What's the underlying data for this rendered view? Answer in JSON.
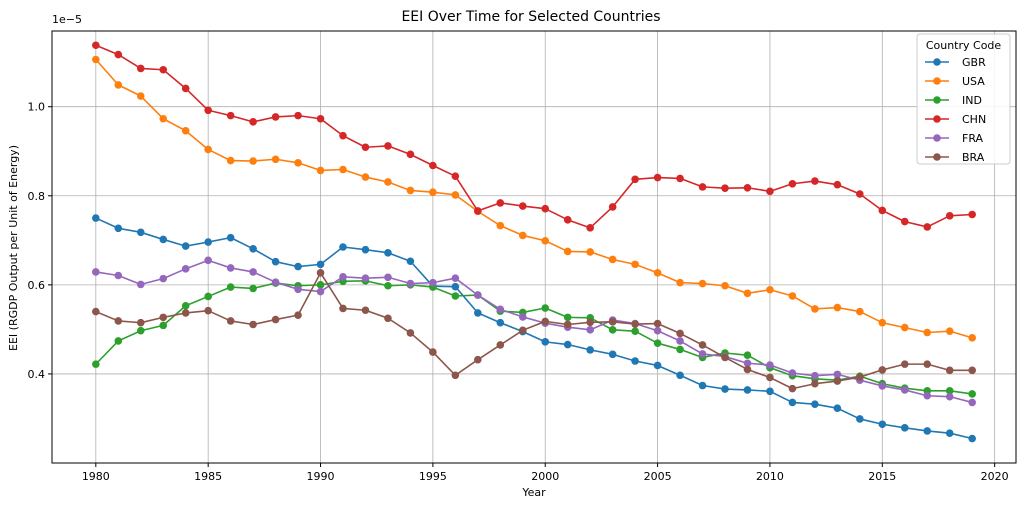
{
  "chart_data": {
    "type": "line",
    "title": "EEI Over Time for Selected Countries",
    "xlabel": "Year",
    "ylabel": "EEI (RGDP Output per Unit of Energy)",
    "y_scale_label": "1e−5",
    "xlim": [
      1978.05,
      2020.95
    ],
    "ylim": [
      0.2,
      1.17
    ],
    "x_ticks": [
      1980,
      1985,
      1990,
      1995,
      2000,
      2005,
      2010,
      2015,
      2020
    ],
    "y_ticks": [
      0.4,
      0.6,
      0.8,
      1.0
    ],
    "y_tick_labels": [
      "0.4",
      "0.6",
      "0.8",
      "1.0"
    ],
    "grid": true,
    "legend_title": "Country Code",
    "legend_position": "top-right",
    "x": [
      1980,
      1981,
      1982,
      1983,
      1984,
      1985,
      1986,
      1987,
      1988,
      1989,
      1990,
      1991,
      1992,
      1993,
      1994,
      1995,
      1996,
      1997,
      1998,
      1999,
      2000,
      2001,
      2002,
      2003,
      2004,
      2005,
      2006,
      2007,
      2008,
      2009,
      2010,
      2011,
      2012,
      2013,
      2014,
      2015,
      2016,
      2017,
      2018,
      2019
    ],
    "series": [
      {
        "name": "GBR",
        "color": "#1f77b4",
        "values": [
          0.75,
          0.727,
          0.718,
          0.702,
          0.687,
          0.696,
          0.706,
          0.681,
          0.652,
          0.641,
          0.646,
          0.685,
          0.679,
          0.672,
          0.653,
          0.597,
          0.596,
          0.537,
          0.515,
          0.495,
          0.472,
          0.466,
          0.454,
          0.444,
          0.429,
          0.419,
          0.397,
          0.374,
          0.366,
          0.364,
          0.361,
          0.336,
          0.332,
          0.323,
          0.299,
          0.287,
          0.279,
          0.272,
          0.267,
          0.255
        ]
      },
      {
        "name": "USA",
        "color": "#ff7f0e",
        "values": [
          1.106,
          1.049,
          1.024,
          0.973,
          0.946,
          0.904,
          0.879,
          0.878,
          0.882,
          0.874,
          0.857,
          0.859,
          0.842,
          0.831,
          0.812,
          0.808,
          0.802,
          0.765,
          0.733,
          0.711,
          0.699,
          0.675,
          0.674,
          0.657,
          0.646,
          0.627,
          0.605,
          0.603,
          0.598,
          0.581,
          0.589,
          0.575,
          0.546,
          0.549,
          0.54,
          0.515,
          0.504,
          0.493,
          0.496,
          0.481
        ]
      },
      {
        "name": "IND",
        "color": "#2ca02c",
        "values": [
          0.422,
          0.474,
          0.497,
          0.509,
          0.553,
          0.574,
          0.595,
          0.592,
          0.604,
          0.598,
          0.6,
          0.608,
          0.609,
          0.598,
          0.6,
          0.595,
          0.575,
          0.577,
          0.541,
          0.538,
          0.548,
          0.527,
          0.526,
          0.499,
          0.496,
          0.469,
          0.455,
          0.437,
          0.447,
          0.442,
          0.414,
          0.396,
          0.389,
          0.386,
          0.395,
          0.378,
          0.368,
          0.362,
          0.362,
          0.355
        ]
      },
      {
        "name": "CHN",
        "color": "#d62728",
        "values": [
          1.138,
          1.117,
          1.086,
          1.083,
          1.041,
          0.992,
          0.98,
          0.966,
          0.977,
          0.98,
          0.973,
          0.935,
          0.909,
          0.912,
          0.893,
          0.868,
          0.844,
          0.766,
          0.784,
          0.777,
          0.771,
          0.746,
          0.728,
          0.775,
          0.837,
          0.841,
          0.839,
          0.82,
          0.817,
          0.818,
          0.81,
          0.827,
          0.833,
          0.825,
          0.804,
          0.767,
          0.742,
          0.73,
          0.755,
          0.758
        ]
      },
      {
        "name": "FRA",
        "color": "#9467bd",
        "values": [
          0.629,
          0.621,
          0.601,
          0.614,
          0.636,
          0.655,
          0.638,
          0.629,
          0.606,
          0.59,
          0.585,
          0.618,
          0.615,
          0.617,
          0.603,
          0.605,
          0.615,
          0.577,
          0.545,
          0.528,
          0.514,
          0.505,
          0.499,
          0.521,
          0.513,
          0.497,
          0.474,
          0.445,
          0.439,
          0.424,
          0.42,
          0.402,
          0.396,
          0.399,
          0.386,
          0.373,
          0.364,
          0.351,
          0.349,
          0.336
        ]
      },
      {
        "name": "BRA",
        "color": "#8c564b",
        "values": [
          0.54,
          0.519,
          0.515,
          0.527,
          0.537,
          0.542,
          0.519,
          0.511,
          0.522,
          0.532,
          0.627,
          0.547,
          0.543,
          0.525,
          0.492,
          0.449,
          0.397,
          0.432,
          0.465,
          0.498,
          0.518,
          0.511,
          0.516,
          0.517,
          0.512,
          0.513,
          0.491,
          0.465,
          0.437,
          0.41,
          0.392,
          0.367,
          0.378,
          0.384,
          0.393,
          0.409,
          0.422,
          0.422,
          0.408,
          0.408
        ]
      }
    ]
  }
}
